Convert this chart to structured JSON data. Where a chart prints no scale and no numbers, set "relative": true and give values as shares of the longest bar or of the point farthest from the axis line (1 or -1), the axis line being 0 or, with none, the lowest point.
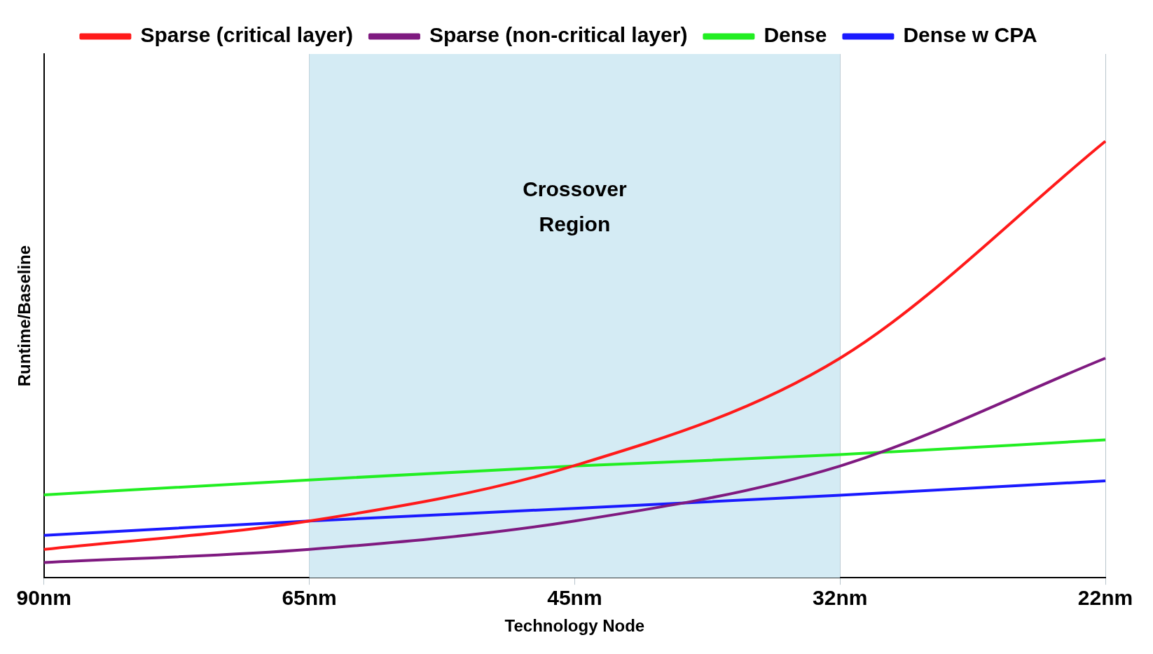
{
  "chart_data": {
    "type": "line",
    "relative": true,
    "xlabel": "Technology Node",
    "ylabel": "Runtime/Baseline",
    "categories": [
      "90nm",
      "65nm",
      "45nm",
      "32nm",
      "22nm"
    ],
    "series": [
      {
        "name": "Sparse (critical layer)",
        "color": "#ff1a1a",
        "values": [
          0.065,
          0.13,
          0.257,
          0.503,
          1
        ]
      },
      {
        "name": "Sparse (non-critical layer)",
        "color": "#7f1a80",
        "values": [
          0.035,
          0.065,
          0.13,
          0.256,
          0.503
        ]
      },
      {
        "name": "Dense",
        "color": "#22ee22",
        "values": [
          0.19,
          0.224,
          0.256,
          0.282,
          0.316
        ]
      },
      {
        "name": "Dense w CPA",
        "color": "#1a1aff",
        "values": [
          0.097,
          0.13,
          0.159,
          0.189,
          0.222
        ]
      }
    ],
    "bands": [
      {
        "axis": "x",
        "from": "65nm",
        "to": "32nm",
        "label": "Crossover Region",
        "color": "#d4ebf4"
      }
    ],
    "grid": "x",
    "legend": "top",
    "marker": "none",
    "line_style": "solid"
  }
}
